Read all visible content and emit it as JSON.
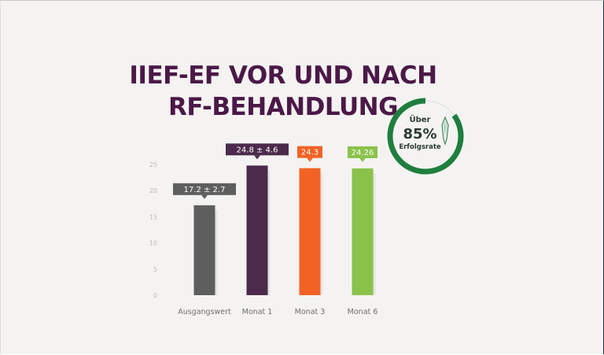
{
  "title": {
    "line1": "IIEF-EF VOR UND NACH",
    "line2": "RF-BEHANDLUNG"
  },
  "badge": {
    "top": "Über",
    "value": "85%",
    "bottom": "Erfolgsrate",
    "fraction": 0.85,
    "color": "#1e7e3e"
  },
  "chart_data": {
    "type": "bar",
    "title": "IIEF-EF VOR UND NACH RF-BEHANDLUNG",
    "xlabel": "",
    "ylabel": "",
    "ylim": [
      0,
      25
    ],
    "yticks": [
      0,
      5,
      10,
      15,
      20,
      25
    ],
    "categories": [
      "Ausgangswert",
      "Monat 1",
      "Monat 3",
      "Monat 6"
    ],
    "values": [
      17.2,
      24.8,
      24.3,
      24.26
    ],
    "labels": [
      "17.2  ±  2.7",
      "24.8  ±  4.6",
      "24.3",
      "24.26"
    ],
    "colors": [
      "#5e5e5e",
      "#4c2a4c",
      "#f26224",
      "#8ac24a"
    ],
    "grid": false,
    "legend": "none"
  }
}
